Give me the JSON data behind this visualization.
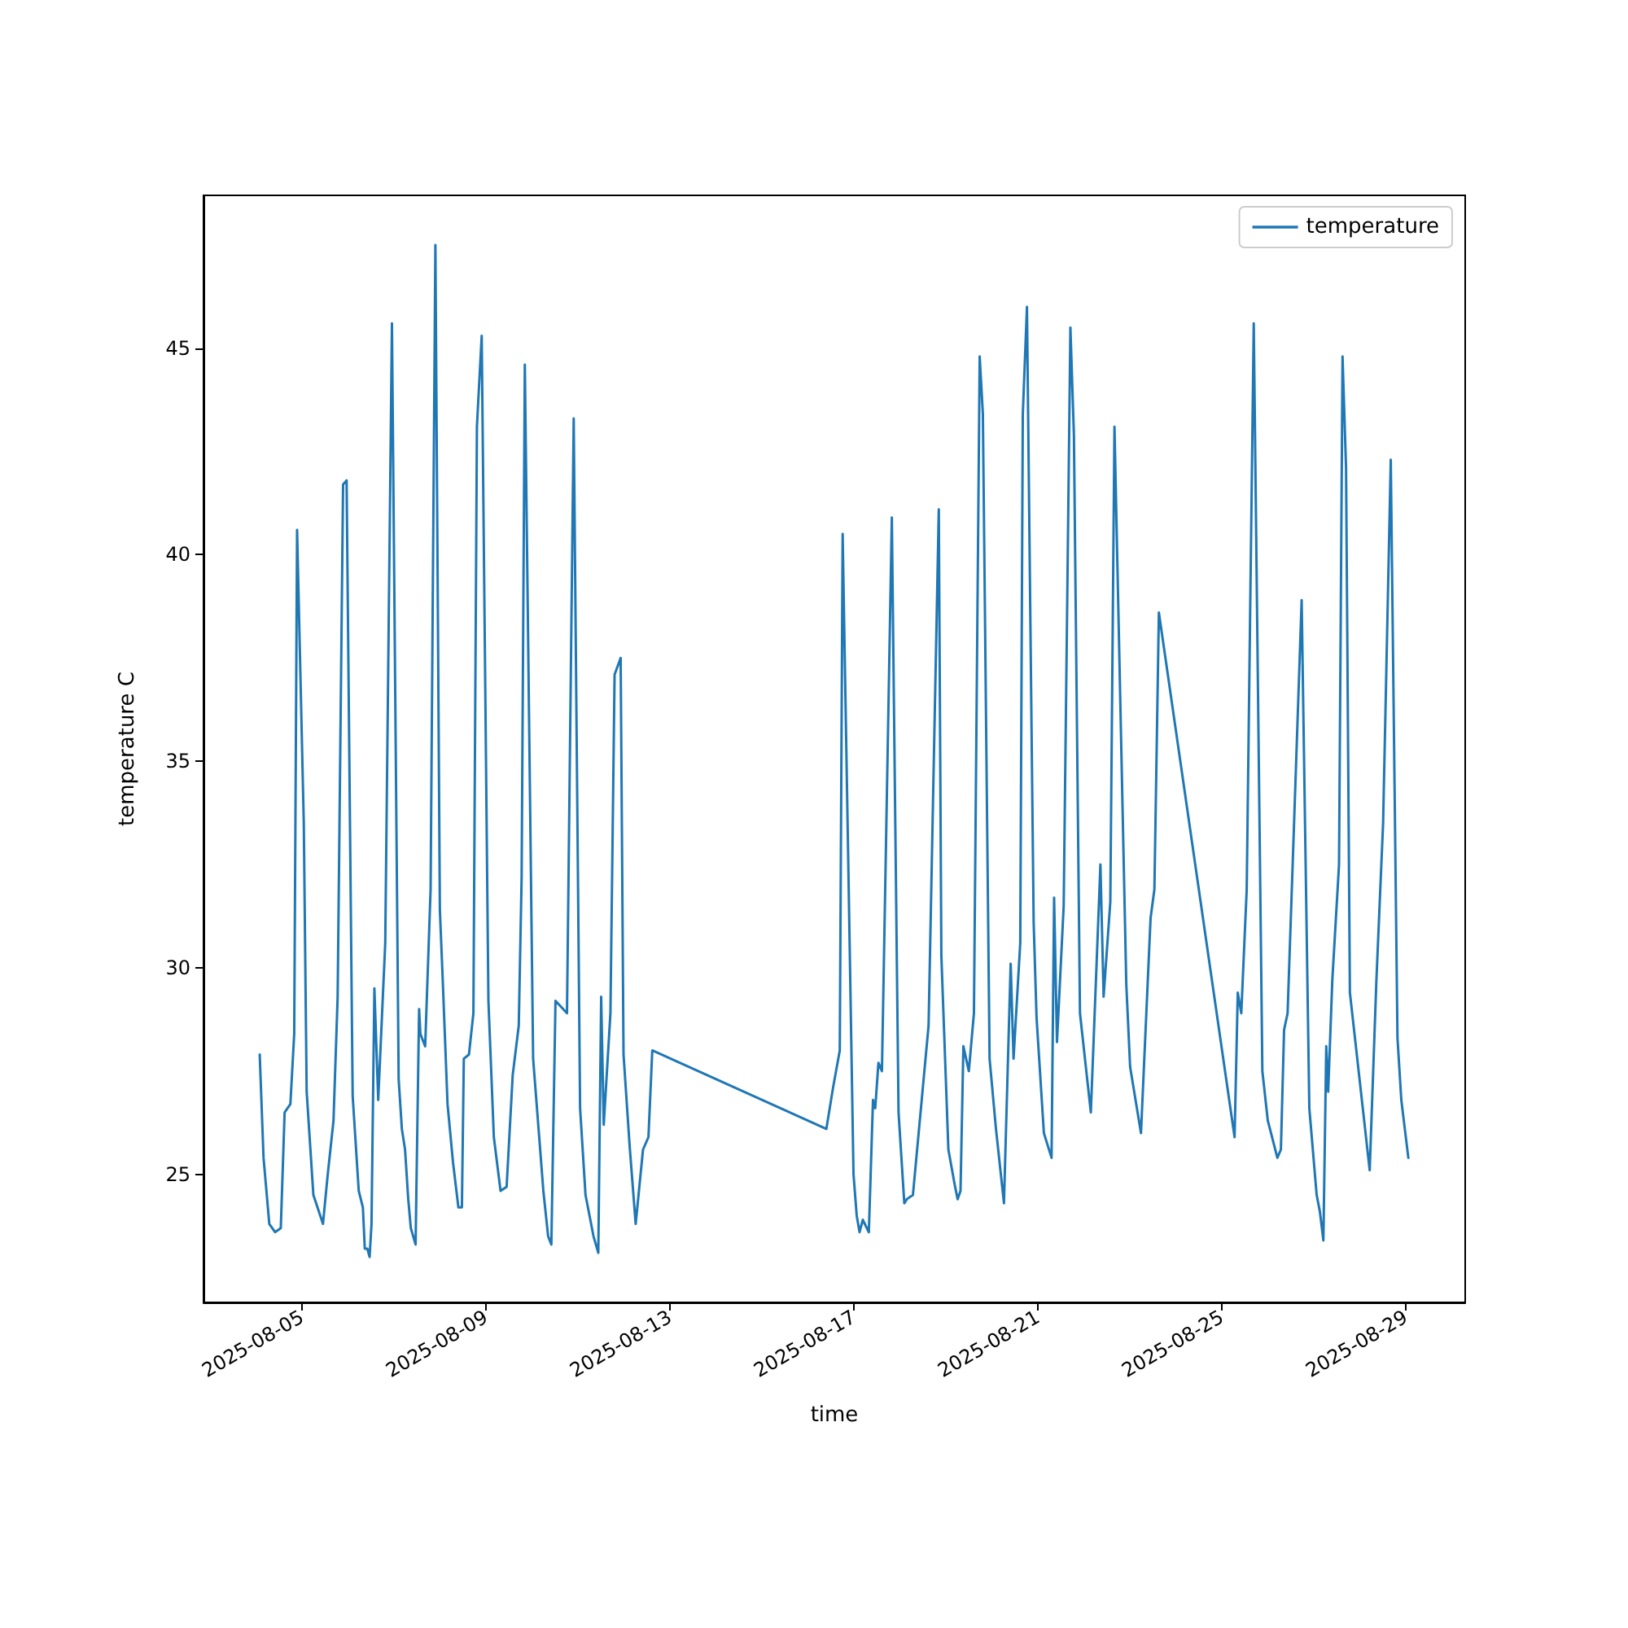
{
  "chart_data": {
    "type": "line",
    "xlabel": "time",
    "ylabel": "temperature C",
    "x": [
      "2025-08-04T02:00",
      "2025-08-04T04:00",
      "2025-08-04T07:00",
      "2025-08-04T10:00",
      "2025-08-04T13:00",
      "2025-08-04T15:00",
      "2025-08-04T18:00",
      "2025-08-04T20:00",
      "2025-08-04T21:30",
      "2025-08-05T01:00",
      "2025-08-05T02:30",
      "2025-08-05T06:00",
      "2025-08-05T11:00",
      "2025-08-05T13:30",
      "2025-08-05T16:30",
      "2025-08-05T18:40",
      "2025-08-05T21:30",
      "2025-08-05T23:20",
      "2025-08-06T02:30",
      "2025-08-06T05:40",
      "2025-08-06T07:50",
      "2025-08-06T08:50",
      "2025-08-06T10:10",
      "2025-08-06T11:20",
      "2025-08-06T12:20",
      "2025-08-06T13:50",
      "2025-08-06T15:50",
      "2025-08-06T19:30",
      "2025-08-06T23:00",
      "2025-08-07T02:30",
      "2025-08-07T04:10",
      "2025-08-07T05:50",
      "2025-08-07T07:30",
      "2025-08-07T08:50",
      "2025-08-07T11:20",
      "2025-08-07T13:10",
      "2025-08-07T13:50",
      "2025-08-07T16:20",
      "2025-08-07T19:10",
      "2025-08-07T21:40",
      "2025-08-08T00:00",
      "2025-08-08T01:30",
      "2025-08-08T04:00",
      "2025-08-08T06:50",
      "2025-08-08T09:40",
      "2025-08-08T11:30",
      "2025-08-08T12:30",
      "2025-08-08T15:10",
      "2025-08-08T17:30",
      "2025-08-08T19:20",
      "2025-08-08T21:50",
      "2025-08-09T01:20",
      "2025-08-09T04:10",
      "2025-08-09T07:40",
      "2025-08-09T10:50",
      "2025-08-09T14:00",
      "2025-08-09T17:10",
      "2025-08-09T18:40",
      "2025-08-09T20:20",
      "2025-08-10T00:40",
      "2025-08-10T03:30",
      "2025-08-10T06:00",
      "2025-08-10T08:30",
      "2025-08-10T10:10",
      "2025-08-10T12:20",
      "2025-08-10T18:20",
      "2025-08-10T21:50",
      "2025-08-11T01:10",
      "2025-08-11T04:00",
      "2025-08-11T08:10",
      "2025-08-11T10:40",
      "2025-08-11T12:10",
      "2025-08-11T13:30",
      "2025-08-11T17:00",
      "2025-08-11T19:10",
      "2025-08-11T22:20",
      "2025-08-11T23:50",
      "2025-08-12T03:00",
      "2025-08-12T06:10",
      "2025-08-12T10:00",
      "2025-08-12T12:50",
      "2025-08-12T14:50",
      "2025-08-16T09:40",
      "2025-08-16T13:10",
      "2025-08-16T16:40",
      "2025-08-16T18:10",
      "2025-08-16T21:20",
      "2025-08-16T23:50",
      "2025-08-17T01:30",
      "2025-08-17T03:00",
      "2025-08-17T04:40",
      "2025-08-17T07:50",
      "2025-08-17T10:00",
      "2025-08-17T11:10",
      "2025-08-17T12:50",
      "2025-08-17T14:40",
      "2025-08-17T19:50",
      "2025-08-17T23:20",
      "2025-08-18T02:20",
      "2025-08-18T03:40",
      "2025-08-18T06:50",
      "2025-08-18T15:00",
      "2025-08-18T20:20",
      "2025-08-18T21:40",
      "2025-08-19T01:20",
      "2025-08-19T04:50",
      "2025-08-19T06:10",
      "2025-08-19T07:40",
      "2025-08-19T09:10",
      "2025-08-19T12:00",
      "2025-08-19T14:40",
      "2025-08-19T17:40",
      "2025-08-19T19:20",
      "2025-08-19T22:50",
      "2025-08-20T02:10",
      "2025-08-20T06:20",
      "2025-08-20T09:50",
      "2025-08-20T11:20",
      "2025-08-20T14:50",
      "2025-08-20T16:10",
      "2025-08-20T18:20",
      "2025-08-20T21:50",
      "2025-08-20T23:20",
      "2025-08-21T03:10",
      "2025-08-21T07:10",
      "2025-08-21T08:30",
      "2025-08-21T10:00",
      "2025-08-21T13:30",
      "2025-08-21T17:00",
      "2025-08-21T18:50",
      "2025-08-21T22:00",
      "2025-08-22T03:40",
      "2025-08-22T08:40",
      "2025-08-22T10:20",
      "2025-08-22T13:50",
      "2025-08-22T16:00",
      "2025-08-22T22:10",
      "2025-08-23T00:10",
      "2025-08-23T05:50",
      "2025-08-23T10:50",
      "2025-08-23T12:50",
      "2025-08-23T15:10",
      "2025-08-25T06:40",
      "2025-08-25T08:20",
      "2025-08-25T10:10",
      "2025-08-25T13:00",
      "2025-08-25T16:40",
      "2025-08-25T21:10",
      "2025-08-26T00:00",
      "2025-08-26T05:00",
      "2025-08-26T06:50",
      "2025-08-26T08:30",
      "2025-08-26T10:20",
      "2025-08-26T17:40",
      "2025-08-26T21:40",
      "2025-08-27T01:30",
      "2025-08-27T03:10",
      "2025-08-27T05:00",
      "2025-08-27T06:30",
      "2025-08-27T07:30",
      "2025-08-27T09:40",
      "2025-08-27T13:10",
      "2025-08-27T15:00",
      "2025-08-27T16:50",
      "2025-08-27T18:50",
      "2025-08-28T05:10",
      "2025-08-28T08:40",
      "2025-08-28T12:10",
      "2025-08-28T16:10",
      "2025-08-28T19:40",
      "2025-08-28T21:40",
      "2025-08-29T01:20"
    ],
    "series": [
      {
        "name": "temperature",
        "color": "#1f77b4",
        "values": [
          27.9,
          25.4,
          23.8,
          23.6,
          23.7,
          26.5,
          26.7,
          28.4,
          40.6,
          33.5,
          27.0,
          24.5,
          23.8,
          25.0,
          26.3,
          29.3,
          41.7,
          41.8,
          26.9,
          24.6,
          24.2,
          23.2,
          23.2,
          23.0,
          23.8,
          29.5,
          26.8,
          30.6,
          45.6,
          27.3,
          26.1,
          25.6,
          24.4,
          23.7,
          23.3,
          29.0,
          28.4,
          28.1,
          31.9,
          47.5,
          31.4,
          29.7,
          26.7,
          25.3,
          24.2,
          24.2,
          27.8,
          27.9,
          28.9,
          43.1,
          45.3,
          29.2,
          25.9,
          24.6,
          24.7,
          27.4,
          28.6,
          32.2,
          44.6,
          27.8,
          26.1,
          24.6,
          23.5,
          23.3,
          29.2,
          28.9,
          43.3,
          26.6,
          24.5,
          23.5,
          23.1,
          29.3,
          26.2,
          28.9,
          37.1,
          37.5,
          27.9,
          25.7,
          23.8,
          25.6,
          25.9,
          28.0,
          26.1,
          27.1,
          28.0,
          40.5,
          31.9,
          25.0,
          24.0,
          23.6,
          23.9,
          23.6,
          26.8,
          26.6,
          27.7,
          27.5,
          40.9,
          26.5,
          24.3,
          24.4,
          24.5,
          28.6,
          41.1,
          30.3,
          25.6,
          24.7,
          24.4,
          24.6,
          28.1,
          27.5,
          28.9,
          44.8,
          43.4,
          27.8,
          26.1,
          24.3,
          30.1,
          27.8,
          30.6,
          43.4,
          46.0,
          31.1,
          28.8,
          26.0,
          25.4,
          31.7,
          28.2,
          31.5,
          45.5,
          42.9,
          28.9,
          26.5,
          32.5,
          29.3,
          31.6,
          43.1,
          29.6,
          27.6,
          26.0,
          31.2,
          31.9,
          38.6,
          25.9,
          29.4,
          28.9,
          31.9,
          45.6,
          27.5,
          26.3,
          25.4,
          25.6,
          28.5,
          28.9,
          38.9,
          26.6,
          24.5,
          24.1,
          23.4,
          28.1,
          27.0,
          29.7,
          32.5,
          44.8,
          42.1,
          29.4,
          25.1,
          29.7,
          33.5,
          42.3,
          28.3,
          26.8,
          25.4
        ]
      }
    ],
    "xlim": [
      "2025-08-02T20:40",
      "2025-08-30T07:00"
    ],
    "xticks": [
      "2025-08-05",
      "2025-08-09",
      "2025-08-13",
      "2025-08-17",
      "2025-08-21",
      "2025-08-25",
      "2025-08-29"
    ],
    "ylim": [
      21.9,
      48.7
    ],
    "yticks": [
      25,
      30,
      35,
      40,
      45
    ],
    "grid": false,
    "legend": "top right",
    "marker": "none",
    "line_style": "solid"
  }
}
